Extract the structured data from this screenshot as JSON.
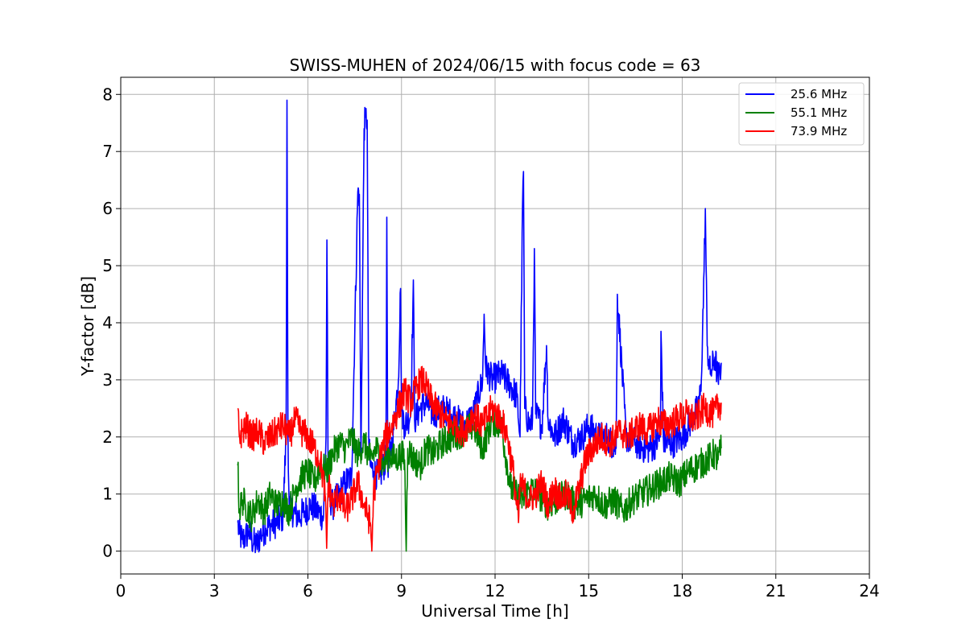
{
  "chart_data": {
    "type": "line",
    "title": "SWISS-MUHEN of 2024/06/15 with focus code = 63",
    "xlabel": "Universal Time [h]",
    "ylabel": "Y-factor [dB]",
    "xlim": [
      0,
      24
    ],
    "ylim": [
      -0.4,
      8.3
    ],
    "xticks": [
      0,
      3,
      6,
      9,
      12,
      15,
      18,
      21,
      24
    ],
    "yticks": [
      0,
      1,
      2,
      3,
      4,
      5,
      6,
      7,
      8
    ],
    "grid": true,
    "legend_position": "top-right",
    "series": [
      {
        "name": "25.6 MHz",
        "color": "#0000ff",
        "x": [
          3.75,
          3.8,
          3.9,
          4.0,
          4.1,
          4.2,
          4.35,
          4.5,
          4.65,
          4.8,
          5.0,
          5.2,
          5.3,
          5.33,
          5.36,
          5.4,
          5.5,
          5.7,
          5.9,
          6.1,
          6.3,
          6.5,
          6.58,
          6.61,
          6.65,
          6.8,
          7.0,
          7.2,
          7.4,
          7.6,
          7.65,
          7.7,
          7.8,
          7.85,
          7.9,
          7.95,
          8.0,
          8.1,
          8.3,
          8.5,
          8.53,
          8.56,
          8.7,
          8.9,
          8.97,
          9.0,
          9.1,
          9.3,
          9.38,
          9.42,
          9.6,
          9.8,
          10.0,
          10.3,
          10.6,
          11.0,
          11.3,
          11.6,
          11.65,
          11.7,
          11.9,
          12.2,
          12.5,
          12.7,
          12.8,
          12.88,
          12.91,
          12.95,
          13.1,
          13.2,
          13.26,
          13.3,
          13.5,
          13.65,
          13.7,
          13.9,
          14.2,
          14.5,
          14.8,
          15.0,
          15.3,
          15.6,
          15.88,
          15.92,
          16.2,
          16.5,
          16.8,
          17.0,
          17.3,
          17.32,
          17.4,
          17.7,
          18.0,
          18.3,
          18.5,
          18.6,
          18.7,
          18.74,
          18.8,
          18.9,
          19.05,
          19.15,
          19.25
        ],
        "y": [
          0.5,
          0.3,
          0.2,
          0.25,
          0.35,
          0.2,
          0.1,
          0.3,
          0.4,
          0.45,
          0.5,
          0.6,
          2.0,
          7.9,
          2.1,
          0.8,
          0.7,
          0.6,
          0.7,
          0.8,
          0.7,
          0.6,
          2.0,
          5.45,
          1.0,
          0.8,
          1.0,
          1.2,
          1.3,
          6.3,
          6.25,
          1.6,
          7.4,
          7.6,
          7.55,
          1.9,
          1.5,
          1.4,
          1.3,
          1.6,
          5.85,
          1.5,
          1.9,
          3.0,
          4.6,
          2.5,
          2.2,
          2.4,
          4.75,
          2.3,
          2.5,
          2.6,
          2.4,
          2.5,
          2.4,
          2.2,
          2.4,
          3.0,
          4.15,
          3.2,
          3.0,
          3.1,
          2.9,
          2.7,
          2.0,
          6.05,
          6.65,
          2.5,
          2.2,
          2.3,
          5.3,
          2.4,
          2.2,
          3.6,
          2.3,
          2.0,
          2.3,
          1.9,
          2.0,
          2.2,
          2.0,
          2.0,
          1.8,
          4.5,
          2.0,
          1.9,
          1.8,
          1.8,
          2.0,
          3.85,
          1.9,
          1.9,
          2.0,
          2.3,
          2.5,
          2.8,
          4.9,
          6.0,
          3.6,
          3.1,
          3.4,
          3.0,
          3.3
        ]
      },
      {
        "name": "55.1 MHz",
        "color": "#008000",
        "x": [
          3.75,
          3.8,
          3.9,
          4.0,
          4.2,
          4.4,
          4.6,
          4.8,
          5.0,
          5.2,
          5.4,
          5.6,
          5.8,
          6.0,
          6.2,
          6.4,
          6.6,
          6.8,
          7.0,
          7.2,
          7.4,
          7.6,
          7.8,
          8.0,
          8.2,
          8.4,
          8.6,
          8.8,
          9.0,
          9.1,
          9.15,
          9.2,
          9.4,
          9.6,
          9.8,
          10.0,
          10.3,
          10.6,
          11.0,
          11.3,
          11.6,
          11.9,
          12.2,
          12.5,
          12.7,
          12.9,
          13.1,
          13.4,
          13.7,
          14.0,
          14.3,
          14.6,
          14.9,
          15.2,
          15.5,
          15.8,
          16.1,
          16.4,
          16.7,
          17.0,
          17.3,
          17.6,
          17.9,
          18.2,
          18.5,
          18.8,
          19.0,
          19.15,
          19.25
        ],
        "y": [
          1.5,
          0.7,
          0.9,
          0.8,
          0.6,
          0.9,
          0.7,
          1.0,
          0.8,
          0.9,
          0.7,
          1.1,
          1.3,
          1.4,
          1.2,
          1.5,
          1.4,
          1.7,
          1.9,
          1.8,
          2.0,
          1.7,
          1.9,
          1.6,
          1.8,
          1.5,
          1.7,
          1.6,
          1.7,
          1.6,
          0.0,
          1.8,
          1.6,
          1.5,
          1.8,
          1.7,
          1.9,
          2.0,
          2.1,
          2.2,
          1.8,
          2.3,
          2.2,
          1.1,
          1.0,
          0.9,
          1.1,
          1.0,
          0.8,
          0.9,
          1.0,
          0.8,
          0.9,
          1.0,
          0.8,
          0.9,
          0.7,
          0.9,
          1.0,
          1.1,
          1.2,
          1.3,
          1.2,
          1.4,
          1.5,
          1.6,
          1.7,
          1.6,
          1.8
        ]
      },
      {
        "name": "73.9 MHz",
        "color": "#ff0000",
        "x": [
          3.75,
          3.8,
          3.9,
          4.0,
          4.2,
          4.4,
          4.6,
          4.8,
          5.0,
          5.2,
          5.4,
          5.6,
          5.8,
          6.0,
          6.2,
          6.4,
          6.55,
          6.6,
          6.65,
          6.8,
          7.0,
          7.2,
          7.4,
          7.6,
          7.8,
          8.0,
          8.05,
          8.1,
          8.3,
          8.5,
          8.7,
          8.9,
          9.1,
          9.3,
          9.5,
          9.7,
          9.9,
          10.1,
          10.4,
          10.7,
          11.0,
          11.3,
          11.6,
          11.9,
          12.2,
          12.4,
          12.6,
          12.75,
          12.8,
          12.9,
          13.1,
          13.3,
          13.5,
          13.7,
          13.9,
          14.1,
          14.3,
          14.5,
          14.7,
          14.9,
          15.1,
          15.4,
          15.7,
          16.0,
          16.3,
          16.6,
          16.9,
          17.2,
          17.5,
          17.8,
          18.1,
          18.4,
          18.7,
          19.0,
          19.25
        ],
        "y": [
          2.5,
          2.0,
          2.1,
          2.2,
          2.0,
          2.1,
          1.9,
          2.0,
          2.1,
          2.2,
          2.0,
          2.3,
          2.1,
          2.0,
          1.8,
          1.6,
          1.0,
          0.05,
          1.2,
          0.8,
          1.0,
          0.7,
          0.9,
          1.2,
          0.8,
          0.5,
          0.0,
          1.0,
          1.6,
          2.0,
          2.2,
          2.5,
          2.8,
          2.6,
          2.9,
          3.0,
          2.7,
          2.5,
          2.3,
          2.2,
          2.1,
          2.4,
          2.2,
          2.5,
          2.3,
          2.0,
          1.3,
          0.5,
          1.2,
          1.1,
          0.9,
          1.0,
          1.2,
          0.8,
          1.1,
          0.9,
          1.0,
          0.7,
          1.1,
          1.6,
          1.8,
          2.0,
          1.9,
          2.1,
          2.0,
          2.2,
          2.1,
          2.3,
          2.2,
          2.3,
          2.4,
          2.3,
          2.5,
          2.4,
          2.6
        ]
      }
    ]
  }
}
